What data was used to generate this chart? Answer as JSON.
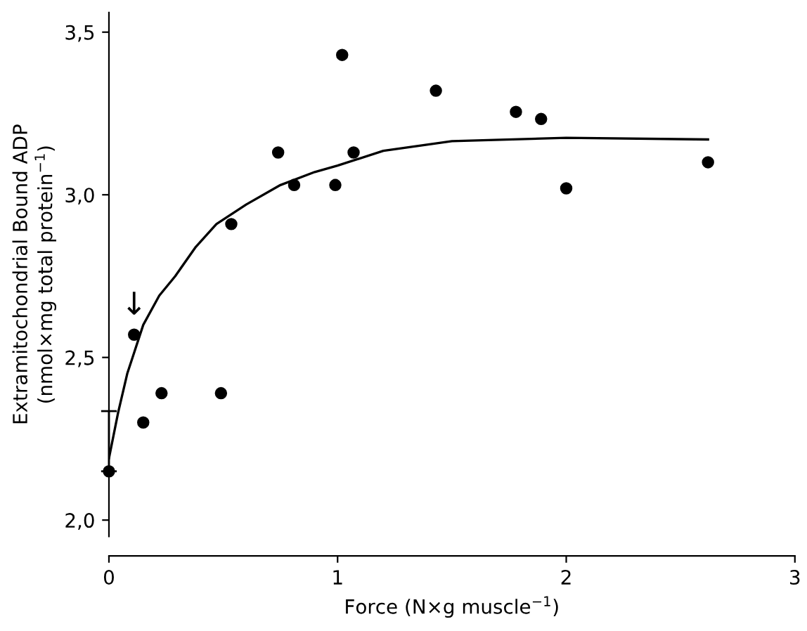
{
  "chart_data": {
    "type": "scatter",
    "xlabel": "Force (N×g muscle$^{−1}$)",
    "ylabel": "Extramitochondrial Bound ADP\n(nmol×mg total protein$^{−1}$)",
    "xlim": [
      0,
      3
    ],
    "ylim": [
      1.95,
      3.56
    ],
    "xticks": [
      0,
      1,
      2,
      3
    ],
    "yticks": [
      {
        "value": 2.0,
        "label": "2,0"
      },
      {
        "value": 2.5,
        "label": "2,5"
      },
      {
        "value": 3.0,
        "label": "3,0"
      },
      {
        "value": 3.5,
        "label": "3,5"
      }
    ],
    "series": [
      {
        "color": "#000000",
        "marker": "circle",
        "x": [
          0,
          0.11,
          0.15,
          0.23,
          0.49,
          0.535,
          0.74,
          0.81,
          0.99,
          1.02,
          1.07,
          1.43,
          1.78,
          1.89,
          2.0,
          2.62
        ],
        "values": [
          2.15,
          2.57,
          2.3,
          2.39,
          2.39,
          2.91,
          3.13,
          3.03,
          3.03,
          3.43,
          3.13,
          3.32,
          3.255,
          3.233,
          3.02,
          3.1
        ],
        "errors": [
          [
            2.15,
            2.335
          ],
          null,
          null,
          null,
          null,
          null,
          null,
          null,
          null,
          null,
          null,
          null,
          null,
          null,
          null,
          null
        ]
      },
      {
        "type": "line",
        "color": "#000000",
        "line_style": "solid",
        "x": [
          0,
          0.04,
          0.08,
          0.15,
          0.22,
          0.29,
          0.38,
          0.47,
          0.6,
          0.75,
          0.9,
          1.0,
          1.2,
          1.5,
          2.0,
          2.62
        ],
        "values": [
          2.19,
          2.33,
          2.45,
          2.6,
          2.69,
          2.75,
          2.84,
          2.91,
          2.97,
          3.03,
          3.07,
          3.09,
          3.135,
          3.165,
          3.175,
          3.17
        ]
      }
    ],
    "annotations": [
      {
        "text": "↓",
        "x": 0.11,
        "y": 2.57
      }
    ]
  }
}
